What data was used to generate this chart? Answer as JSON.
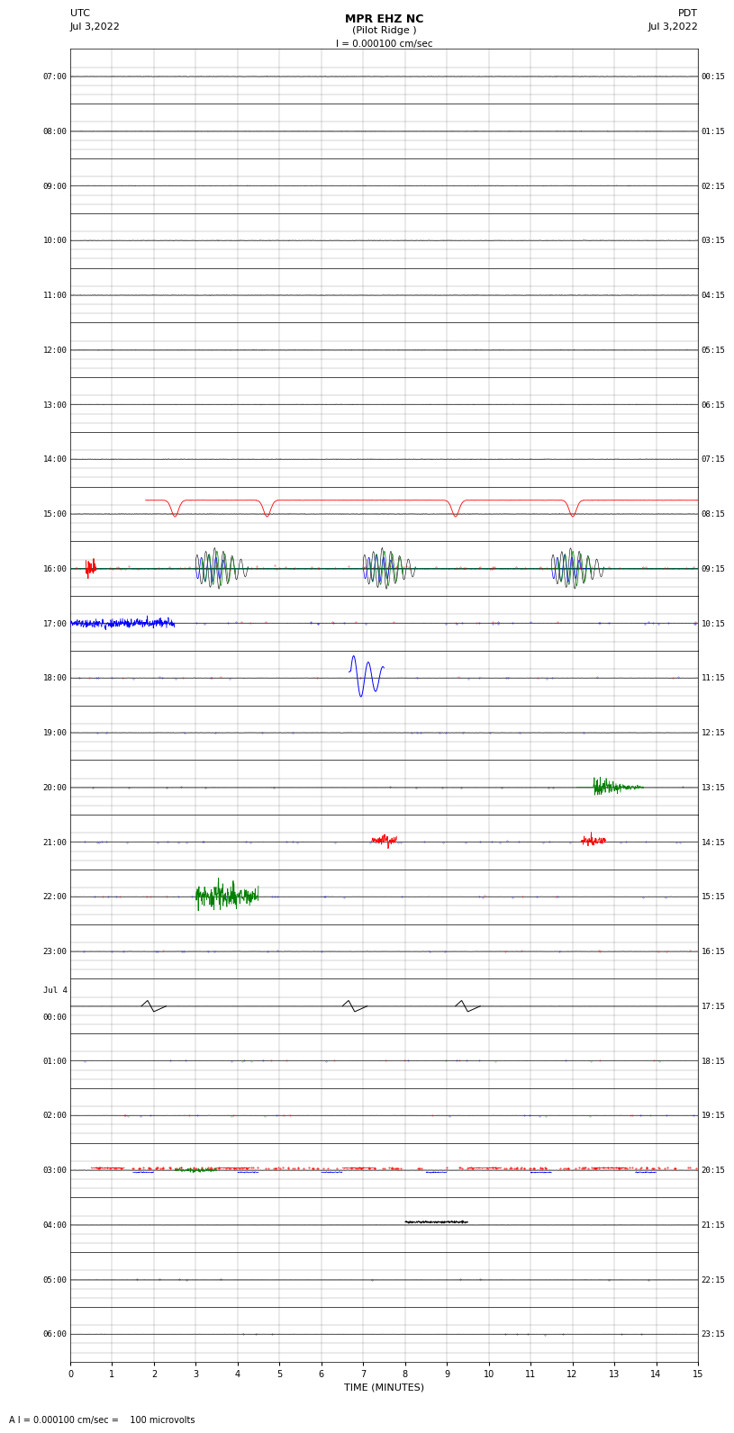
{
  "title_line1": "MPR EHZ NC",
  "title_line2": "(Pilot Ridge )",
  "title_line3": "I = 0.000100 cm/sec",
  "left_header_line1": "UTC",
  "left_header_line2": "Jul 3,2022",
  "right_header_line1": "PDT",
  "right_header_line2": "Jul 3,2022",
  "xlabel": "TIME (MINUTES)",
  "bottom_note": "A I = 0.000100 cm/sec =    100 microvolts",
  "utc_labels": [
    "07:00",
    "08:00",
    "09:00",
    "10:00",
    "11:00",
    "12:00",
    "13:00",
    "14:00",
    "15:00",
    "16:00",
    "17:00",
    "18:00",
    "19:00",
    "20:00",
    "21:00",
    "22:00",
    "23:00",
    "Jul 4\n00:00",
    "01:00",
    "02:00",
    "03:00",
    "04:00",
    "05:00",
    "06:00"
  ],
  "pdt_labels": [
    "00:15",
    "01:15",
    "02:15",
    "03:15",
    "04:15",
    "05:15",
    "06:15",
    "07:15",
    "08:15",
    "09:15",
    "10:15",
    "11:15",
    "12:15",
    "13:15",
    "14:15",
    "15:15",
    "16:15",
    "17:15",
    "18:15",
    "19:15",
    "20:15",
    "21:15",
    "22:15",
    "23:15"
  ],
  "num_rows": 24,
  "x_ticks": [
    0,
    1,
    2,
    3,
    4,
    5,
    6,
    7,
    8,
    9,
    10,
    11,
    12,
    13,
    14,
    15
  ],
  "bg_color": "#ffffff",
  "grid_color": "#000000",
  "fig_width": 8.5,
  "fig_height": 16.13
}
